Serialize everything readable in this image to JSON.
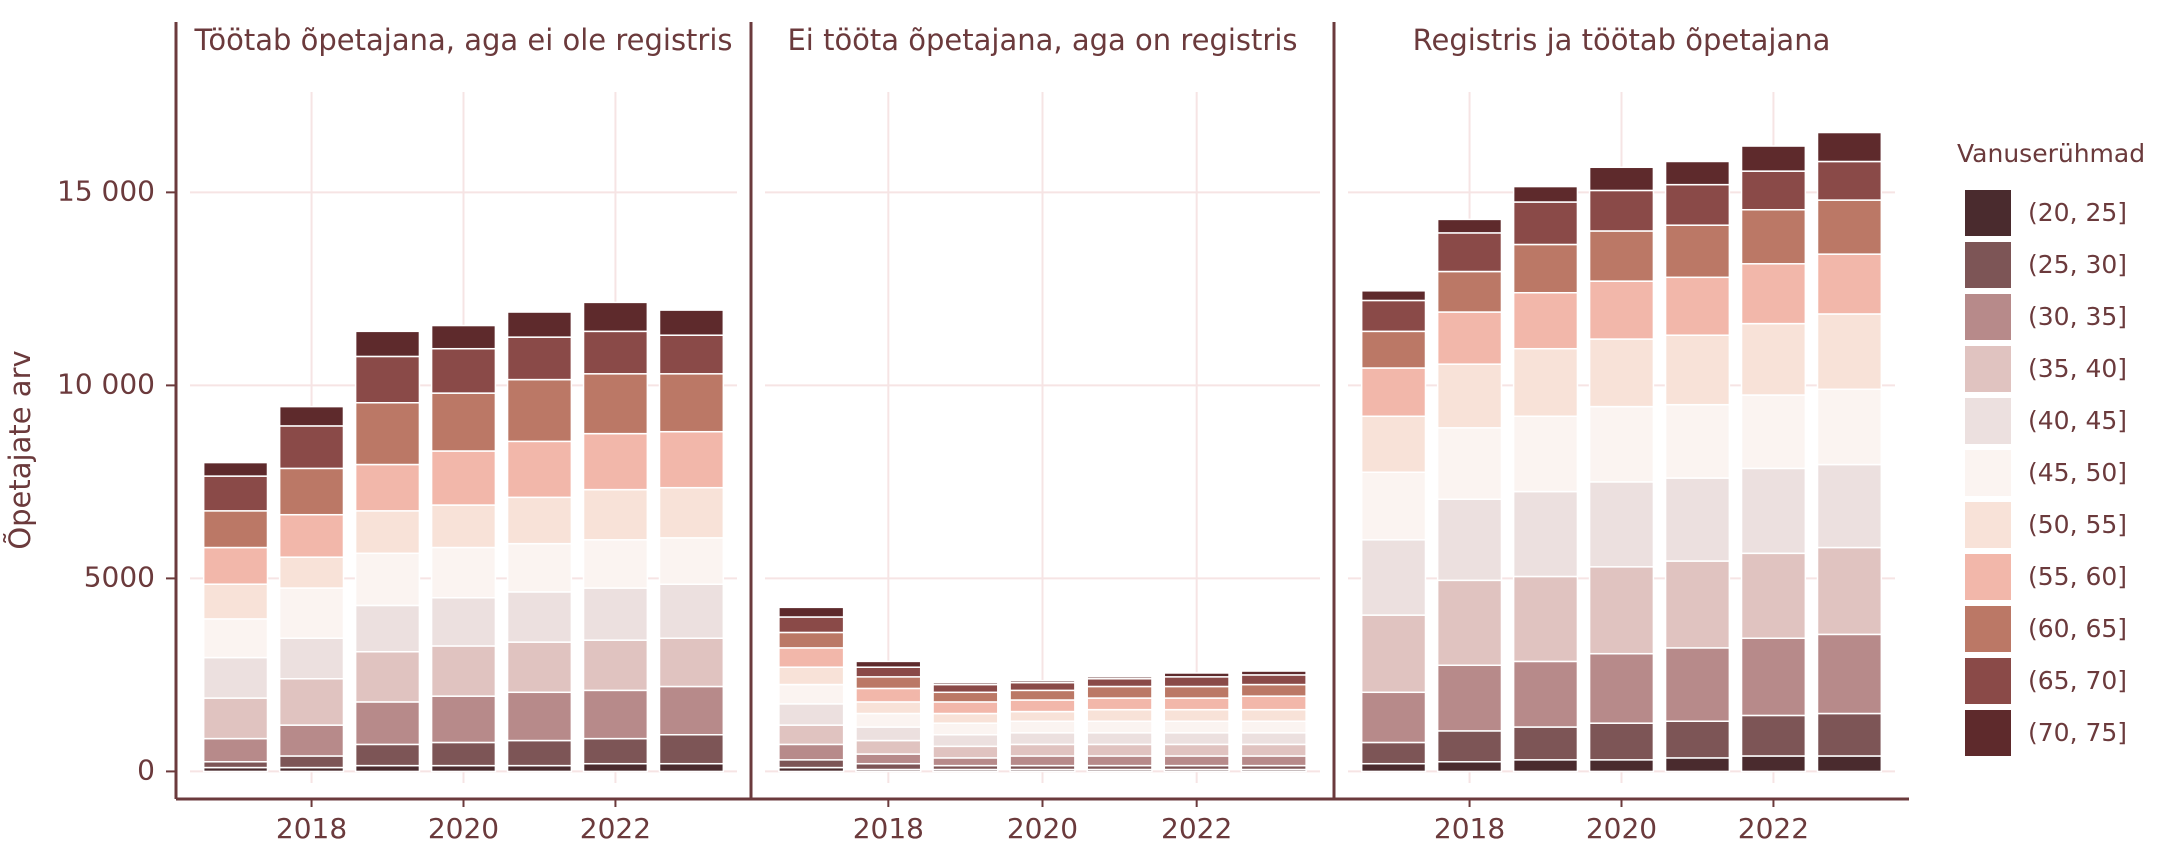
{
  "chart_data": {
    "type": "bar",
    "stacked": true,
    "ylabel": "Õpetajate arv",
    "legend_title": "Vanuserühmad",
    "x": [
      2017,
      2018,
      2019,
      2020,
      2021,
      2022,
      2023
    ],
    "xlim": [
      2016.4,
      2023.6
    ],
    "xticks": [
      2018,
      2020,
      2022
    ],
    "ylim": [
      -300,
      17600
    ],
    "yticks": [
      0,
      5000,
      {
        "value": 10000,
        "label": "10 000"
      },
      {
        "value": 15000,
        "label": "15 000"
      }
    ],
    "grid": true,
    "series": [
      {
        "name": "(20, 25]",
        "color": "#4a2b2e"
      },
      {
        "name": "(25, 30]",
        "color": "#7d5556"
      },
      {
        "name": "(30, 35]",
        "color": "#b78a8a"
      },
      {
        "name": "(35, 40]",
        "color": "#e0c3c0"
      },
      {
        "name": "(40, 45]",
        "color": "#ece0df"
      },
      {
        "name": "(45, 50]",
        "color": "#fbf4f1"
      },
      {
        "name": "(50, 55]",
        "color": "#f8e2d8"
      },
      {
        "name": "(55, 60]",
        "color": "#f2b7aa"
      },
      {
        "name": "(60, 65]",
        "color": "#bb7866"
      },
      {
        "name": "(65, 70]",
        "color": "#8a4a48"
      },
      {
        "name": "(70, 75]",
        "color": "#5e2a2c"
      }
    ],
    "facets": [
      {
        "title": "Töötab õpetajana, aga ei ole registris",
        "values": [
          [
            100,
            100,
            150,
            150,
            150,
            200,
            200
          ],
          [
            150,
            300,
            550,
            600,
            650,
            650,
            750
          ],
          [
            600,
            800,
            1100,
            1200,
            1250,
            1250,
            1250
          ],
          [
            1050,
            1200,
            1300,
            1300,
            1300,
            1300,
            1250
          ],
          [
            1050,
            1050,
            1200,
            1250,
            1300,
            1350,
            1400
          ],
          [
            1000,
            1300,
            1350,
            1300,
            1250,
            1250,
            1200
          ],
          [
            900,
            800,
            1100,
            1100,
            1200,
            1300,
            1300
          ],
          [
            950,
            1100,
            1200,
            1400,
            1450,
            1450,
            1450
          ],
          [
            950,
            1200,
            1600,
            1500,
            1600,
            1550,
            1500
          ],
          [
            900,
            1100,
            1200,
            1150,
            1100,
            1100,
            1000
          ],
          [
            350,
            500,
            650,
            600,
            650,
            750,
            650
          ]
        ]
      },
      {
        "title": "Ei tööta õpetajana, aga on registris",
        "values": [
          [
            100,
            50,
            50,
            50,
            50,
            50,
            50
          ],
          [
            200,
            150,
            100,
            100,
            100,
            100,
            100
          ],
          [
            400,
            250,
            200,
            250,
            250,
            250,
            250
          ],
          [
            500,
            350,
            300,
            300,
            300,
            300,
            300
          ],
          [
            550,
            350,
            300,
            300,
            300,
            300,
            300
          ],
          [
            500,
            350,
            300,
            300,
            300,
            300,
            300
          ],
          [
            450,
            300,
            250,
            250,
            300,
            300,
            300
          ],
          [
            500,
            350,
            300,
            300,
            300,
            300,
            350
          ],
          [
            400,
            300,
            250,
            250,
            300,
            300,
            300
          ],
          [
            400,
            250,
            200,
            200,
            200,
            250,
            250
          ],
          [
            250,
            150,
            50,
            50,
            50,
            100,
            100
          ]
        ]
      },
      {
        "title": "Registris ja töötab õpetajana",
        "values": [
          [
            200,
            250,
            300,
            300,
            350,
            400,
            400
          ],
          [
            550,
            800,
            850,
            950,
            950,
            1050,
            1100
          ],
          [
            1300,
            1700,
            1700,
            1800,
            1900,
            2000,
            2050
          ],
          [
            2000,
            2200,
            2200,
            2250,
            2250,
            2200,
            2250
          ],
          [
            1950,
            2100,
            2200,
            2200,
            2150,
            2200,
            2150
          ],
          [
            1750,
            1850,
            1950,
            1950,
            1900,
            1900,
            1950
          ],
          [
            1450,
            1650,
            1750,
            1750,
            1800,
            1850,
            1950
          ],
          [
            1250,
            1350,
            1450,
            1500,
            1500,
            1550,
            1550
          ],
          [
            950,
            1050,
            1250,
            1300,
            1350,
            1400,
            1400
          ],
          [
            800,
            1000,
            1100,
            1050,
            1050,
            1000,
            1000
          ],
          [
            250,
            350,
            400,
            600,
            600,
            650,
            750
          ]
        ]
      }
    ]
  }
}
